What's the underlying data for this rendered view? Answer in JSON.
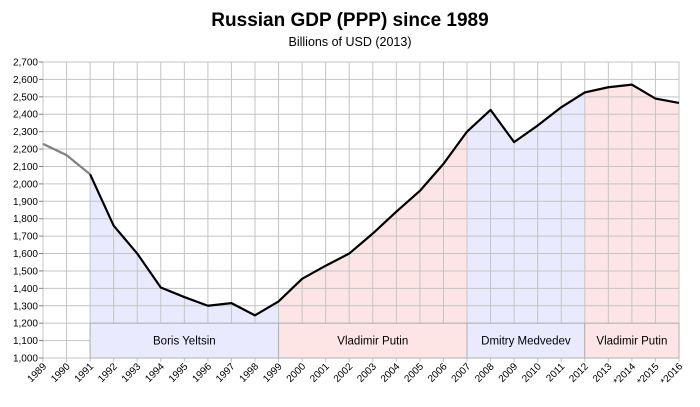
{
  "chart_data": {
    "type": "line",
    "title": "Russian GDP (PPP) since 1989",
    "subtitle": "Billions of USD (2013)",
    "xlabel": "",
    "ylabel": "",
    "ylim": [
      1000,
      2700
    ],
    "y_ticks": [
      1000,
      1100,
      1200,
      1300,
      1400,
      1500,
      1600,
      1700,
      1800,
      1900,
      2000,
      2100,
      2200,
      2300,
      2400,
      2500,
      2600,
      2700
    ],
    "y_tick_labels": [
      "1,000",
      "1,100",
      "1,200",
      "1,300",
      "1,400",
      "1,500",
      "1,600",
      "1,700",
      "1,800",
      "1,900",
      "2,000",
      "2,100",
      "2,200",
      "2,300",
      "2,400",
      "2,500",
      "2,600",
      "2,700"
    ],
    "categories": [
      "1989",
      "1990",
      "1991",
      "1992",
      "1993",
      "1994",
      "1995",
      "1996",
      "1997",
      "1998",
      "1999",
      "2000",
      "2001",
      "2002",
      "2003",
      "2004",
      "2005",
      "2006",
      "2007",
      "2008",
      "2009",
      "2010",
      "2011",
      "2012",
      "2013",
      "*2014",
      "*2015",
      "*2016"
    ],
    "series": [
      {
        "values": [
          2230,
          2165,
          2055,
          1760,
          1600,
          1405,
          1350,
          1300,
          1315,
          1245,
          1325,
          1455,
          1530,
          1600,
          1715,
          1840,
          1960,
          2115,
          2300,
          2425,
          2240,
          2335,
          2440,
          2525,
          2555,
          2570,
          2490,
          2465
        ],
        "pre_period_color": "#808080",
        "line_color": "#000000"
      }
    ],
    "periods": [
      {
        "label": "Boris Yeltsin",
        "start": "1991",
        "end": "1999",
        "color": "#eaeaff"
      },
      {
        "label": "Vladimir Putin",
        "start": "1999",
        "end": "2007",
        "color": "#fde5e5"
      },
      {
        "label": "Dmitry Medvedev",
        "start": "2007",
        "end": "2012",
        "color": "#eaeaff"
      },
      {
        "label": "Vladimir Putin",
        "start": "2012",
        "end": "*2016",
        "color": "#fde5e5"
      }
    ],
    "grid": true,
    "legend": "none"
  }
}
